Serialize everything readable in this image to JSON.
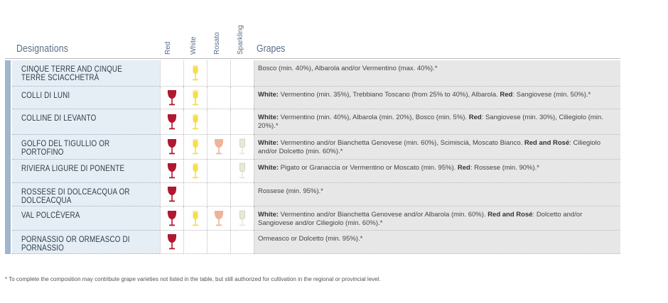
{
  "headers": {
    "designations": "Designations",
    "grapes": "Grapes",
    "red": "Red",
    "white": "White",
    "rosato": "Rosato",
    "sparkling": "Sparkling"
  },
  "colors": {
    "red": "#b0182f",
    "white": "#f4de4a",
    "rosato": "#efb39a",
    "sparkling": "#e6ead8"
  },
  "rows": [
    {
      "name": "Cinque Terre and Cinque Terre Sciacchetrà",
      "red": false,
      "white": true,
      "rosato": false,
      "sparkling": false,
      "grapes_parts": [
        {
          "t": "Bosco (min. 40%), Albarola and/or Vermentino (max. 40%).*",
          "b": false
        }
      ]
    },
    {
      "name": "Colli di Luni",
      "red": true,
      "white": true,
      "rosato": false,
      "sparkling": false,
      "grapes_parts": [
        {
          "t": "White:",
          "b": true
        },
        {
          "t": " Vermentino (min. 35%), Trebbiano Toscano (from 25% to 40%), Albarola. ",
          "b": false
        },
        {
          "t": "Red",
          "b": true
        },
        {
          "t": ": Sangiovese (min. 50%).*",
          "b": false
        }
      ]
    },
    {
      "name": "Colline di Levanto",
      "red": true,
      "white": true,
      "rosato": false,
      "sparkling": false,
      "grapes_parts": [
        {
          "t": "White:",
          "b": true
        },
        {
          "t": " Vermentino (min. 40%), Albarola (min. 20%), Bosco (min. 5%). ",
          "b": false
        },
        {
          "t": "Red",
          "b": true
        },
        {
          "t": ": Sangiovese (min. 30%), Ciliegiolo (min. 20%).*",
          "b": false
        }
      ]
    },
    {
      "name": "Golfo del Tigullio or Portofino",
      "red": true,
      "white": true,
      "rosato": true,
      "sparkling": true,
      "grapes_parts": [
        {
          "t": "White:",
          "b": true
        },
        {
          "t": " Vermentino and/or Bianchetta Genovese (min. 60%), Scimiscià, Moscato Bianco. ",
          "b": false
        },
        {
          "t": "Red and Rosé",
          "b": true
        },
        {
          "t": ": Ciliegiolo and/or Dolcetto (min. 60%).*",
          "b": false
        }
      ]
    },
    {
      "name": "Riviera Ligure di Ponente",
      "red": true,
      "white": true,
      "rosato": false,
      "sparkling": true,
      "grapes_parts": [
        {
          "t": "White:",
          "b": true
        },
        {
          "t": " Pigato or Granaccia or Vermentino or Moscato (min. 95%). ",
          "b": false
        },
        {
          "t": "Red",
          "b": true
        },
        {
          "t": ": Rossese (min. 90%).*",
          "b": false
        }
      ]
    },
    {
      "name": "Rossese di Dolceacqua or Dolceacqua",
      "red": true,
      "white": false,
      "rosato": false,
      "sparkling": false,
      "grapes_parts": [
        {
          "t": "Rossese (min. 95%).*",
          "b": false
        }
      ]
    },
    {
      "name": "Val Polcèvera",
      "red": true,
      "white": true,
      "rosato": true,
      "sparkling": true,
      "grapes_parts": [
        {
          "t": "White:",
          "b": true
        },
        {
          "t": " Vermentino and/or Bianchetta Genovese and/or Albarola (min. 60%). ",
          "b": false
        },
        {
          "t": "Red and Rosé",
          "b": true
        },
        {
          "t": ": Dolcetto and/or Sangiovese and/or Ciliegiolo (min. 60%).*",
          "b": false
        }
      ]
    },
    {
      "name": "Pornassio or Ormeasco di Pornassio",
      "red": true,
      "white": false,
      "rosato": false,
      "sparkling": false,
      "grapes_parts": [
        {
          "t": "Ormeasco or Dolcetto (min. 95%).*",
          "b": false
        }
      ]
    }
  ],
  "footnote": "* To complete the composition may contribute grape varieties not listed in the table, but still authorized for cultivation in the regional or provincial level."
}
